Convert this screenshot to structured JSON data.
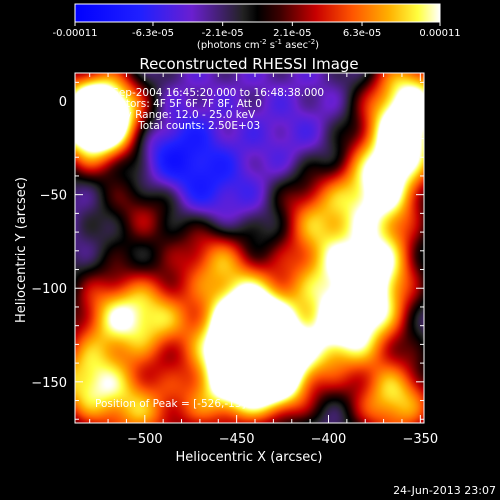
{
  "chart_data": {
    "type": "heatmap",
    "title": "Reconstructed RHESSI Image",
    "xlabel": "Heliocentric X (arcsec)",
    "ylabel": "Heliocentric Y (arcsec)",
    "xlim": [
      -538,
      -348
    ],
    "ylim": [
      -172,
      15
    ],
    "x_ticks": [
      -500,
      -450,
      -400,
      -350
    ],
    "y_ticks": [
      0,
      -50,
      -100,
      -150
    ],
    "colorbar": {
      "min": -0.00011,
      "max": 0.00011,
      "tick_labels": [
        "-0.00011",
        "-6.3e-05",
        "-2.1e-05",
        "2.1e-05",
        "6.3e-05",
        "0.00011"
      ],
      "unit_text": "(photons cm",
      "unit_sup1": "-2",
      "unit_mid": " s",
      "unit_sup2": "-1",
      "unit_mid2": " asec",
      "unit_sup3": "-2",
      "unit_end": ")"
    },
    "annotations": [
      "13-Sep-2004 16:45:20.000 to 16:48:38.000",
      "Detectors: 4F 5F 6F 7F 8F, Att 0",
      "Energy Range: 12.0 - 25.0 keV",
      "Clean    Total counts: 2.50E+03"
    ],
    "peak_label": "Position of Peak = [-526,-15]",
    "sources": [
      {
        "x": -528,
        "y": -12,
        "value": 0.00011
      },
      {
        "x": -523,
        "y": -5,
        "value": 9e-05
      },
      {
        "x": -448,
        "y": -128,
        "value": 0.0001
      },
      {
        "x": -438,
        "y": -140,
        "value": 9e-05
      },
      {
        "x": -428,
        "y": -148,
        "value": 8e-05
      },
      {
        "x": -440,
        "y": -113,
        "value": 8e-05
      },
      {
        "x": -372,
        "y": -48,
        "value": 0.0001
      },
      {
        "x": -360,
        "y": -20,
        "value": 0.0001
      },
      {
        "x": -356,
        "y": 5,
        "value": 8e-05
      },
      {
        "x": -374,
        "y": -85,
        "value": 8e-05
      },
      {
        "x": -378,
        "y": -110,
        "value": 7e-05
      },
      {
        "x": -396,
        "y": -125,
        "value": 8e-05
      },
      {
        "x": -364,
        "y": -160,
        "value": 9e-05
      },
      {
        "x": -532,
        "y": -150,
        "value": 9e-05
      },
      {
        "x": -515,
        "y": -115,
        "value": 7e-05
      },
      {
        "x": -490,
        "y": -115,
        "value": 6e-05
      },
      {
        "x": -462,
        "y": -85,
        "value": 7e-05
      },
      {
        "x": -408,
        "y": -60,
        "value": 5e-05
      },
      {
        "x": -503,
        "y": -165,
        "value": 6e-05
      },
      {
        "x": -463,
        "y": -158,
        "value": 5e-05
      },
      {
        "x": -405,
        "y": -90,
        "value": 4e-05
      },
      {
        "x": -500,
        "y": -55,
        "value": 4e-05
      },
      {
        "x": -495,
        "y": -35,
        "value": -8e-05
      },
      {
        "x": -465,
        "y": -50,
        "value": -7e-05
      },
      {
        "x": -478,
        "y": -25,
        "value": -6e-05
      },
      {
        "x": -440,
        "y": -70,
        "value": -5e-05
      },
      {
        "x": -422,
        "y": -20,
        "value": -5e-05
      },
      {
        "x": -476,
        "y": -105,
        "value": -6e-05
      },
      {
        "x": -505,
        "y": -140,
        "value": -4e-05
      },
      {
        "x": -412,
        "y": -148,
        "value": -4e-05
      },
      {
        "x": -395,
        "y": -48,
        "value": -3e-05
      },
      {
        "x": -530,
        "y": -95,
        "value": -2e-05
      }
    ]
  },
  "timestamp": "24-Jun-2013 23:07"
}
